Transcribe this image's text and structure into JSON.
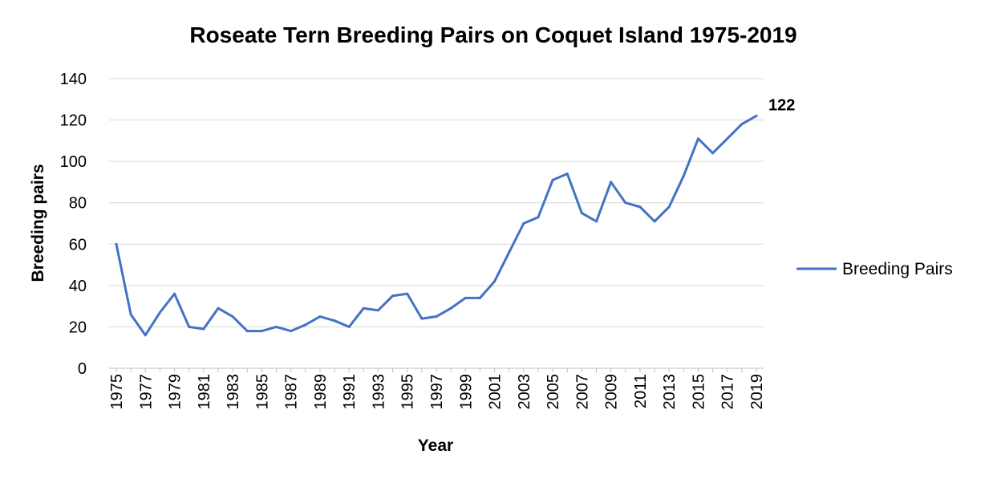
{
  "chart_data": {
    "type": "line",
    "title": "Roseate Tern Breeding Pairs on Coquet Island 1975-2019",
    "xlabel": "Year",
    "ylabel": "Breeding pairs",
    "ylim": [
      0,
      140
    ],
    "yticks": [
      "0",
      "20",
      "40",
      "60",
      "80",
      "100",
      "120",
      "140"
    ],
    "x": [
      1975,
      1976,
      1977,
      1978,
      1979,
      1980,
      1981,
      1982,
      1983,
      1984,
      1985,
      1986,
      1987,
      1988,
      1989,
      1990,
      1991,
      1992,
      1993,
      1994,
      1995,
      1996,
      1997,
      1998,
      1999,
      2000,
      2001,
      2002,
      2003,
      2004,
      2005,
      2006,
      2007,
      2008,
      2009,
      2010,
      2011,
      2012,
      2013,
      2014,
      2015,
      2016,
      2017,
      2018,
      2019
    ],
    "xtick_labels": [
      "1975",
      "1977",
      "1979",
      "1981",
      "1983",
      "1985",
      "1987",
      "1989",
      "1991",
      "1993",
      "1995",
      "1997",
      "1999",
      "2001",
      "2003",
      "2005",
      "2007",
      "2009",
      "2011",
      "2013",
      "2015",
      "2017",
      "2019"
    ],
    "series": [
      {
        "name": "Breeding Pairs",
        "color": "#4472C4",
        "values": [
          60,
          26,
          16,
          27,
          36,
          20,
          19,
          29,
          25,
          18,
          18,
          20,
          18,
          21,
          25,
          23,
          20,
          29,
          28,
          35,
          36,
          24,
          25,
          29,
          34,
          34,
          42,
          56,
          70,
          73,
          91,
          94,
          75,
          71,
          90,
          80,
          78,
          71,
          78,
          93,
          111,
          104,
          111,
          118,
          122
        ]
      }
    ],
    "annotations": [
      {
        "x": 2019,
        "text": "122"
      }
    ],
    "grid": true,
    "legend": "right"
  }
}
